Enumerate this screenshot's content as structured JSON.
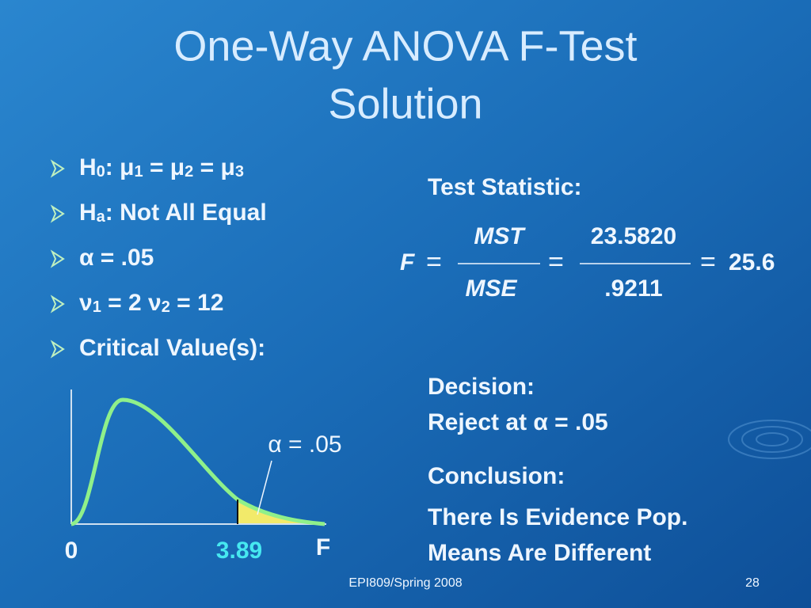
{
  "title": {
    "lines": [
      "One-Way ANOVA F-Test",
      "Solution"
    ]
  },
  "bullets": [
    [
      {
        "t": "H"
      },
      {
        "sub": "0"
      },
      {
        "t": ": μ"
      },
      {
        "sub": "1"
      },
      {
        "t": " = μ"
      },
      {
        "sub": "2"
      },
      {
        "t": " = μ"
      },
      {
        "sub": "3"
      }
    ],
    [
      {
        "t": "H"
      },
      {
        "sub": "a"
      },
      {
        "t": ": Not All Equal"
      }
    ],
    [
      {
        "t": "α = .05"
      }
    ],
    [
      {
        "t": "ν"
      },
      {
        "sub": "1"
      },
      {
        "t": " = 2  ν"
      },
      {
        "sub": "2"
      },
      {
        "t": " = 12"
      }
    ],
    [
      {
        "t": "Critical Value(s):"
      }
    ]
  ],
  "test_statistic": {
    "heading": "Test Statistic:",
    "symbol": "F",
    "equals": "=",
    "numerator": "MST",
    "denominator": "MSE",
    "numerator_value": "23.5820",
    "denominator_value": ".9211",
    "result": "25.6"
  },
  "figure": {
    "origin": 0,
    "critical_value": 3.89,
    "axis_label": "F",
    "alpha_label": "α = .05"
  },
  "decision": {
    "heading": "Decision:",
    "text": "Reject at α = .05"
  },
  "conclusion": {
    "heading": "Conclusion:",
    "lines": [
      "There Is Evidence Pop.",
      "Means Are Different"
    ]
  },
  "footer": {
    "text": "EPI809/Spring 2008",
    "page": 28
  }
}
